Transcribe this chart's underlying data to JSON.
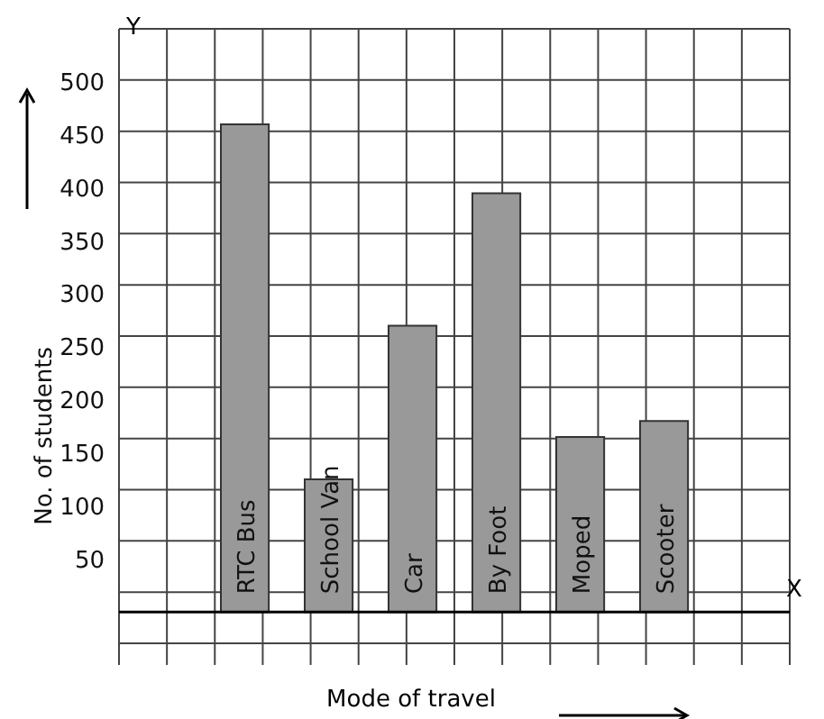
{
  "chart_data": {
    "type": "bar",
    "categories": [
      "RTC Bus",
      "School Van",
      "Car",
      "By Foot",
      "Moped",
      "Scooter"
    ],
    "values": [
      460,
      125,
      270,
      395,
      165,
      180
    ],
    "color": "#999999",
    "xlabel": "Mode of travel",
    "ylabel": "No. of students",
    "ylim": [
      -50,
      550
    ],
    "yticks": [
      50,
      100,
      150,
      200,
      250,
      300,
      350,
      400,
      450,
      500
    ],
    "grid": true,
    "tick_labels": "y",
    "annotations": [
      "X",
      "Y"
    ]
  }
}
